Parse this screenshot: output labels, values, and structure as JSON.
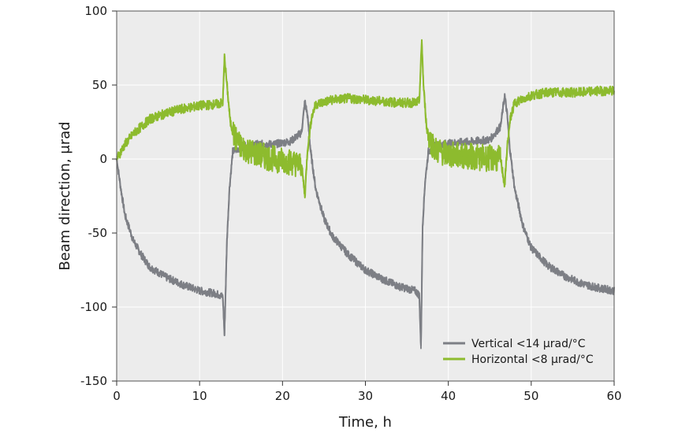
{
  "chart_data": {
    "type": "line",
    "xlabel": "Time, h",
    "ylabel": "Beam direction, μrad",
    "xlim": [
      0,
      60
    ],
    "ylim": [
      -150,
      100
    ],
    "xticks": [
      0,
      10,
      20,
      30,
      40,
      50,
      60
    ],
    "yticks": [
      -150,
      -100,
      -50,
      0,
      50,
      100
    ],
    "grid": true,
    "legend_position": "bottom-right",
    "colors": {
      "plot_bg": "#ececec",
      "grid": "#ffffff",
      "vertical": "#7d7f85",
      "horizontal": "#8dbb2e"
    },
    "series": [
      {
        "name": "Vertical  <14 μrad/°C",
        "color": "#7d7f85",
        "x": [
          0,
          0.5,
          1,
          2,
          3,
          4,
          6,
          8,
          10,
          12,
          12.8,
          13.0,
          13.3,
          13.6,
          14,
          15,
          17,
          19,
          21,
          22.3,
          22.7,
          23.0,
          23.4,
          24,
          25,
          26,
          28,
          30,
          32,
          34,
          36,
          36.5,
          36.7,
          36.9,
          37.2,
          37.6,
          38,
          39,
          41,
          43,
          45,
          46.3,
          46.8,
          47.1,
          47.4,
          48,
          49,
          50,
          52,
          54,
          56,
          58,
          60
        ],
        "y": [
          0,
          -20,
          -38,
          -55,
          -65,
          -73,
          -80,
          -85,
          -89,
          -91,
          -93,
          -119,
          -55,
          -20,
          5,
          8,
          10,
          10,
          12,
          18,
          39,
          30,
          5,
          -20,
          -40,
          -52,
          -65,
          -75,
          -81,
          -86,
          -89,
          -92,
          -128,
          -45,
          -15,
          5,
          8,
          10,
          11,
          12,
          13,
          22,
          43,
          30,
          8,
          -20,
          -45,
          -60,
          -72,
          -79,
          -84,
          -87,
          -89
        ]
      },
      {
        "name": "Horizontal  <8 μrad/°C",
        "color": "#8dbb2e",
        "x": [
          0,
          0.5,
          1,
          2,
          3,
          4,
          6,
          8,
          10,
          12,
          12.8,
          13.0,
          13.3,
          13.7,
          14.2,
          15,
          17,
          19,
          21,
          22.3,
          22.7,
          23.0,
          23.5,
          24,
          26,
          28,
          30,
          32,
          34,
          36,
          36.5,
          36.8,
          37.0,
          37.4,
          37.9,
          38.5,
          40,
          42,
          44,
          46.3,
          46.8,
          47.1,
          47.5,
          48,
          50,
          52,
          54,
          56,
          58,
          60
        ],
        "y": [
          0,
          5,
          10,
          17,
          22,
          27,
          31,
          34,
          36,
          37,
          38,
          69,
          50,
          25,
          15,
          8,
          3,
          0,
          -2,
          -4,
          -25,
          5,
          28,
          37,
          40,
          41,
          40,
          39,
          38,
          38,
          39,
          80,
          50,
          20,
          12,
          6,
          3,
          2,
          1,
          0,
          -18,
          8,
          28,
          38,
          43,
          45,
          45,
          45,
          46,
          46
        ]
      }
    ]
  }
}
